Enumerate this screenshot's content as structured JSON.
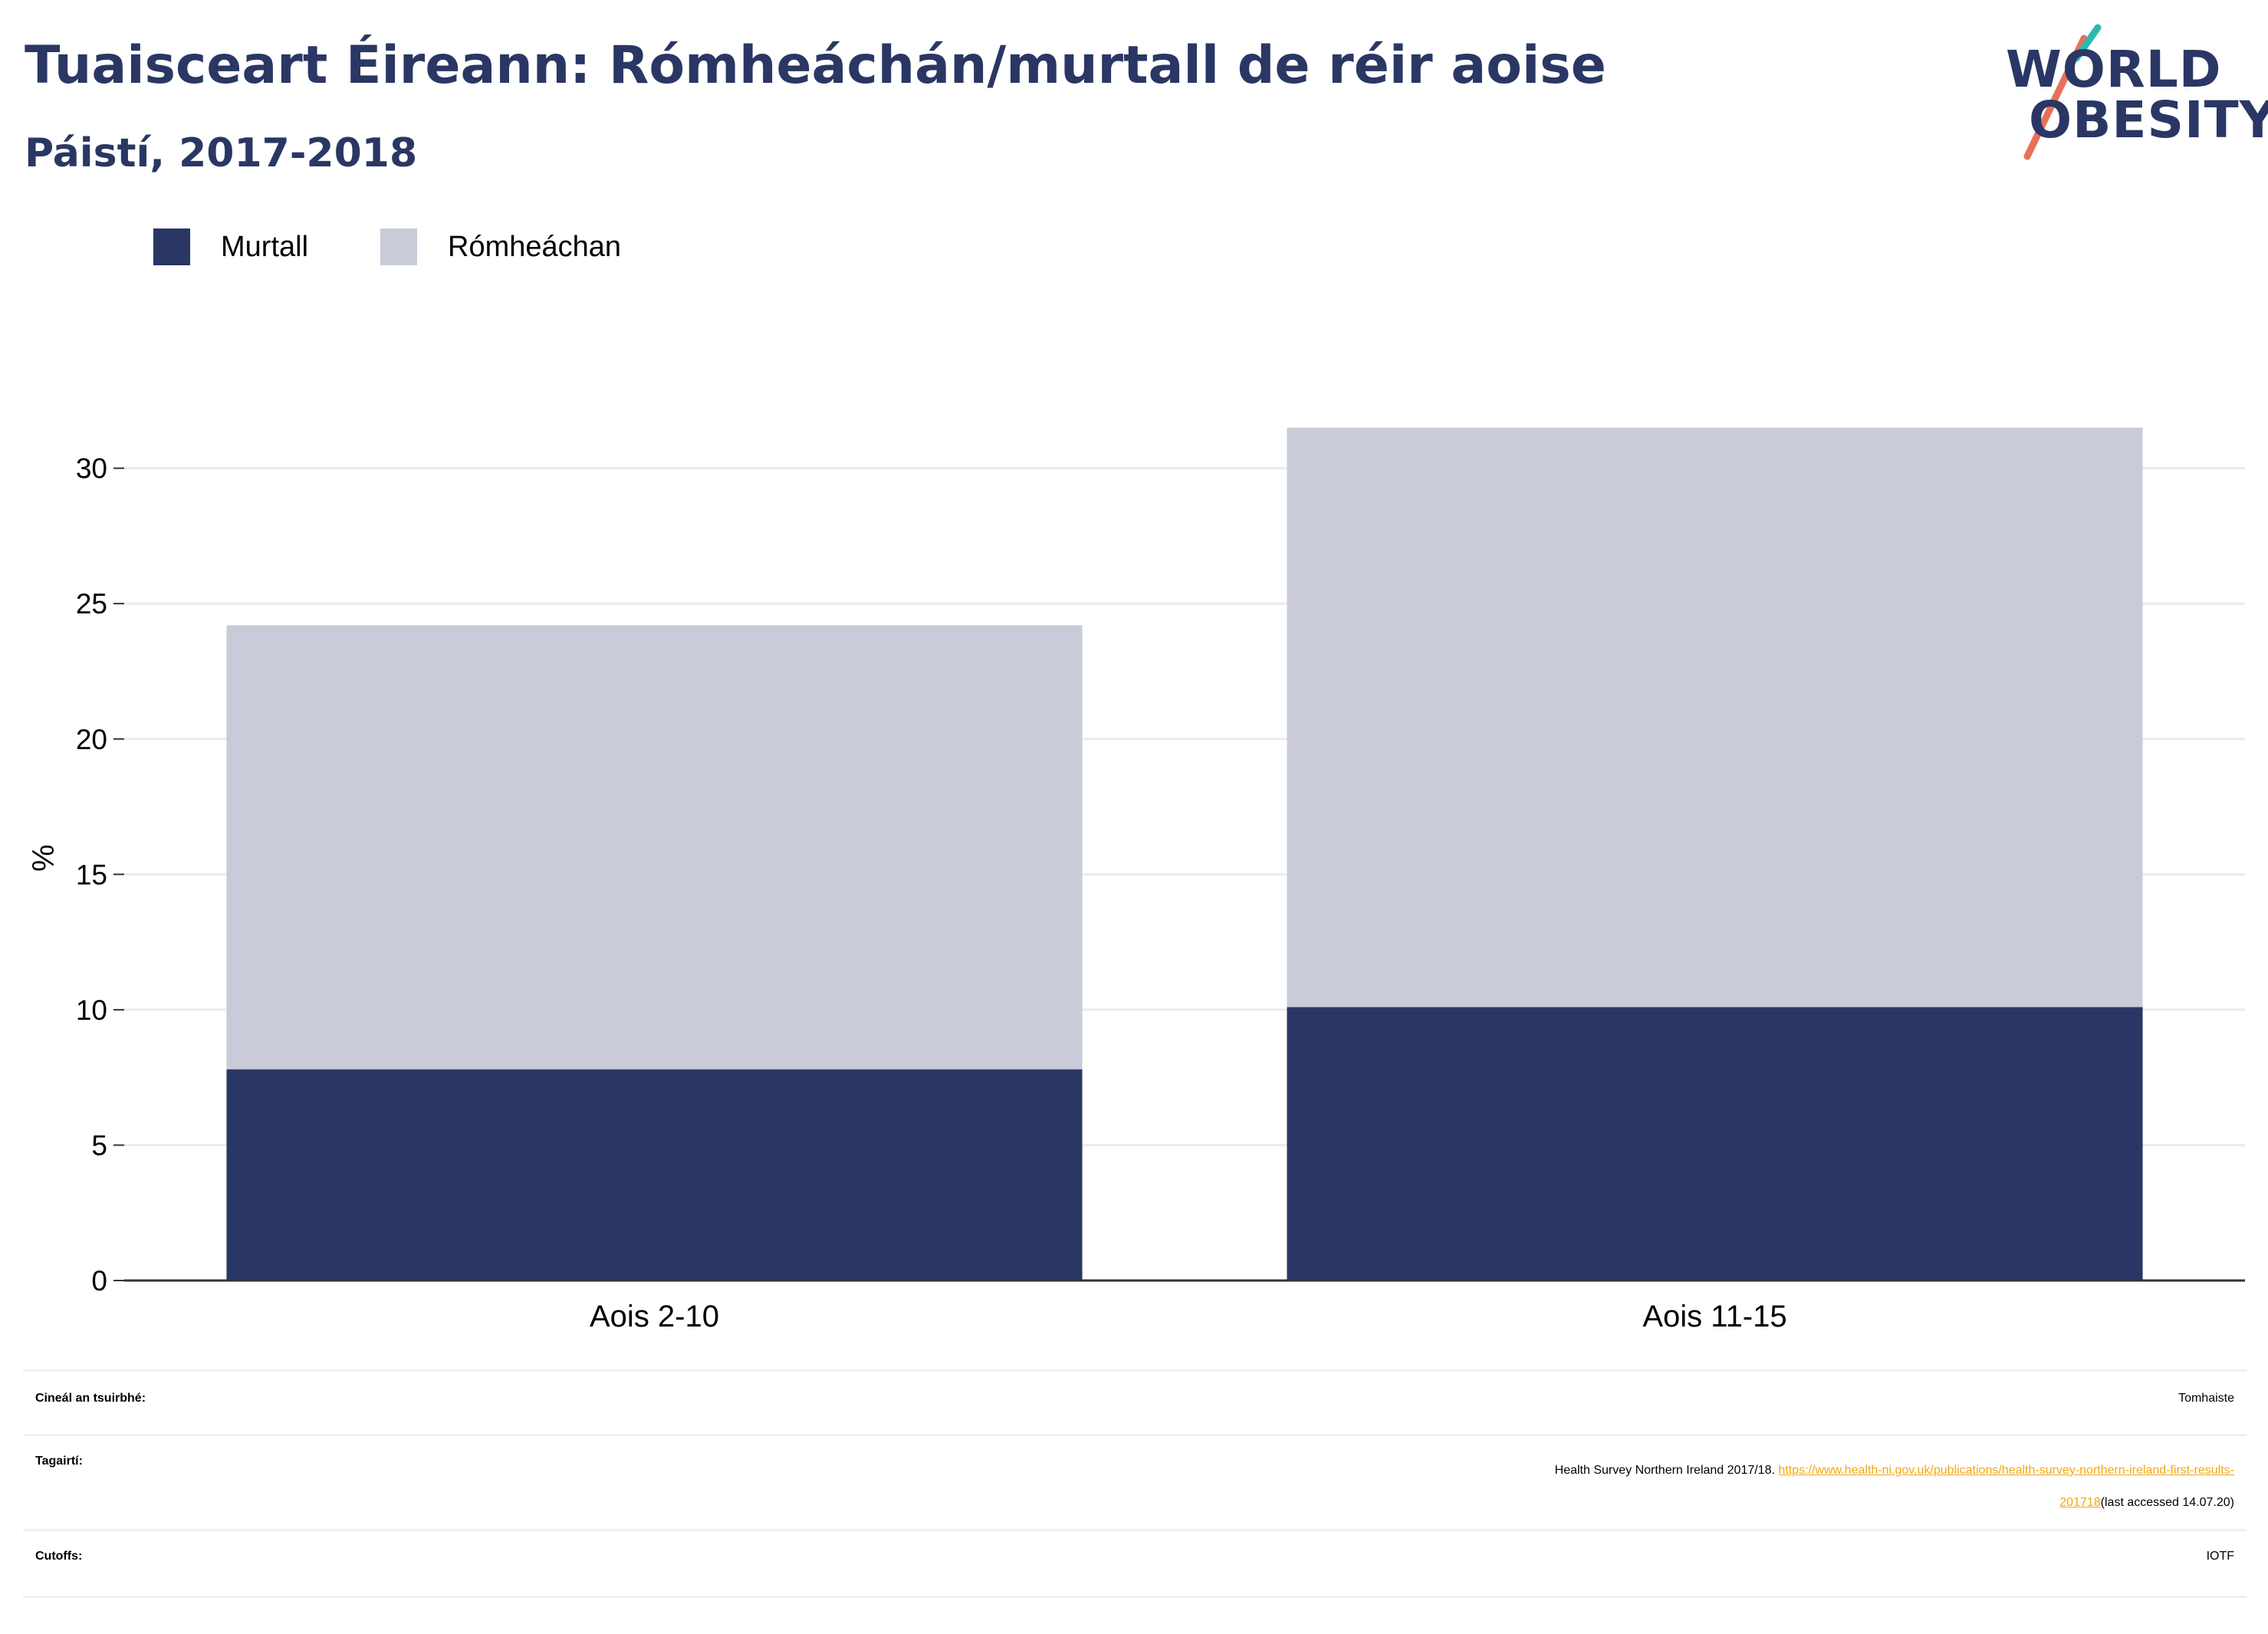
{
  "header": {
    "title": "Tuaisceart Éireann: Rómheáchán/murtall de réir aoise",
    "subtitle": "Páistí, 2017-2018"
  },
  "logo": {
    "line1": "WORLD",
    "line2": "OBESITY"
  },
  "legend": [
    {
      "label": "Murtall",
      "color": "#2a3764"
    },
    {
      "label": "Rómheáchan",
      "color": "#c9ccd8"
    }
  ],
  "chart_data": {
    "type": "bar",
    "stacked": true,
    "categories": [
      "Aois 2-10",
      "Aois 11-15"
    ],
    "series": [
      {
        "name": "Murtall",
        "values": [
          7.8,
          10.1
        ],
        "color": "#2a3764"
      },
      {
        "name": "Rómheáchan",
        "values": [
          16.4,
          21.4
        ],
        "color": "#c9ccd8"
      }
    ],
    "ylabel": "%",
    "ylim": [
      0,
      32
    ],
    "yticks": [
      "0",
      "5",
      "10",
      "15",
      "20",
      "25",
      "30"
    ],
    "grid": true,
    "legend_position": "top-left"
  },
  "meta": {
    "survey_type_label": "Cineál an tsuirbhé:",
    "survey_type_value": "Tomhaiste",
    "references_label": "Tagairtí:",
    "references_text": "Health Survey Northern Ireland 2017/18. ",
    "references_link_part1": "https://www.health-ni.gov.uk/publications/health-survey-northern-ireland-first-results-",
    "references_link_part2": "201718",
    "references_suffix": "(last accessed 14.07.20)",
    "cutoffs_label": "Cutoffs:",
    "cutoffs_value": "IOTF"
  }
}
